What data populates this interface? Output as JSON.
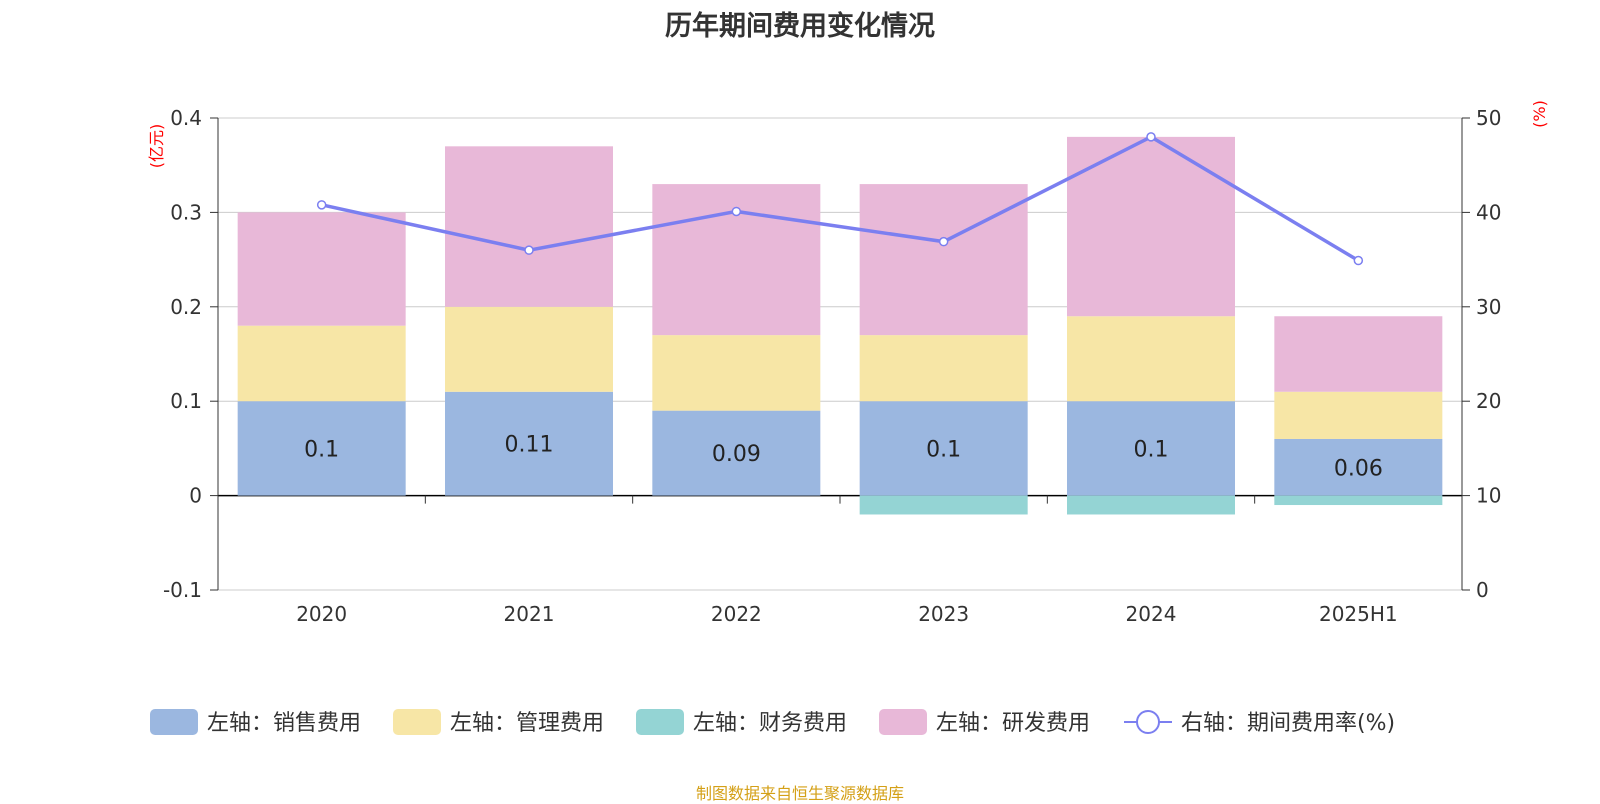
{
  "chart_data": {
    "type": "bar",
    "title": "历年期间费用变化情况",
    "categories": [
      "2020",
      "2021",
      "2022",
      "2023",
      "2024",
      "2025H1"
    ],
    "left_axis": {
      "unit": "(亿元)",
      "ylim": [
        -0.1,
        0.4
      ],
      "ticks": [
        "-0.1",
        "0",
        "0.1",
        "0.2",
        "0.3",
        "0.4"
      ]
    },
    "right_axis": {
      "unit": "(%)",
      "ylim": [
        0,
        50
      ],
      "ticks": [
        "0",
        "10",
        "20",
        "30",
        "40",
        "50"
      ]
    },
    "series": [
      {
        "name": "左轴：销售费用",
        "type": "bar",
        "axis": "left",
        "color": "#9bb7e0",
        "values": [
          0.1,
          0.11,
          0.09,
          0.1,
          0.1,
          0.06
        ],
        "labels": [
          "0.1",
          "0.11",
          "0.09",
          "0.1",
          "0.1",
          "0.06"
        ]
      },
      {
        "name": "左轴：管理费用",
        "type": "bar",
        "axis": "left",
        "color": "#f7e6a6",
        "values": [
          0.08,
          0.09,
          0.08,
          0.07,
          0.09,
          0.05
        ]
      },
      {
        "name": "左轴：财务费用",
        "type": "bar",
        "axis": "left",
        "color": "#94d4d4",
        "values": [
          0.0,
          0.0,
          0.0,
          -0.02,
          -0.02,
          -0.01
        ]
      },
      {
        "name": "左轴：研发费用",
        "type": "bar",
        "axis": "left",
        "color": "#e8b8d8",
        "values": [
          0.12,
          0.17,
          0.16,
          0.16,
          0.19,
          0.08
        ]
      },
      {
        "name": "右轴：期间费用率(%)",
        "type": "line",
        "axis": "right",
        "color": "#7b7ff0",
        "values": [
          40.8,
          36.0,
          40.1,
          36.9,
          48.0,
          34.9
        ]
      }
    ],
    "grid": true,
    "legend_position": "bottom",
    "source": "制图数据来自恒生聚源数据库"
  }
}
